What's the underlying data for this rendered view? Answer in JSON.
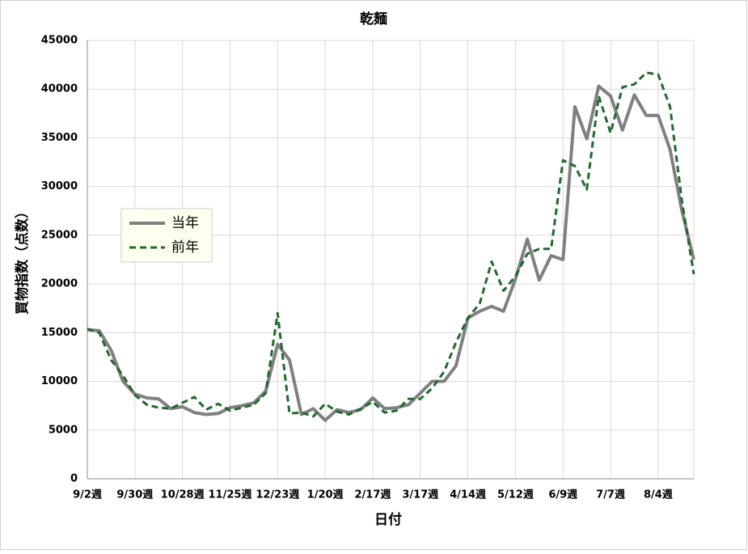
{
  "chart_data": {
    "type": "line",
    "title": "乾麺",
    "x_label": "日付",
    "y_label": "買物指数（点数）",
    "categories": [
      "9/2週",
      null,
      null,
      null,
      "9/30週",
      null,
      null,
      null,
      "10/28週",
      null,
      null,
      null,
      "11/25週",
      null,
      null,
      null,
      "12/23週",
      null,
      null,
      null,
      "1/20週",
      null,
      null,
      null,
      "2/17週",
      null,
      null,
      null,
      "3/17週",
      null,
      null,
      null,
      "4/14週",
      null,
      null,
      null,
      "5/12週",
      null,
      null,
      null,
      "6/9週",
      null,
      null,
      null,
      "7/7週",
      null,
      null,
      null,
      "8/4週",
      null,
      null,
      null
    ],
    "series": [
      {
        "name": "当年",
        "color": "#808080",
        "dash": false,
        "values": [
          15300,
          15200,
          13200,
          10000,
          8700,
          8300,
          8200,
          7200,
          7400,
          6800,
          6600,
          6700,
          7300,
          7500,
          7800,
          9000,
          13800,
          12200,
          6600,
          7200,
          6000,
          7100,
          6800,
          7100,
          8300,
          7200,
          7300,
          7600,
          8800,
          10000,
          10000,
          11600,
          16500,
          17200,
          17700,
          17200,
          20500,
          24600,
          20400,
          22900,
          22500,
          38200,
          34900,
          40300,
          39300,
          35800,
          39400,
          37300,
          37300,
          33800,
          27500,
          22500
        ]
      },
      {
        "name": "前年",
        "color": "#1e6b2a",
        "dash": true,
        "values": [
          15400,
          15000,
          12200,
          10600,
          8600,
          7600,
          7300,
          7200,
          7800,
          8400,
          7100,
          7700,
          7000,
          7300,
          7600,
          8800,
          17000,
          6700,
          6800,
          6400,
          7700,
          6900,
          6600,
          7200,
          7900,
          6800,
          7000,
          8200,
          8200,
          9300,
          11000,
          14000,
          16500,
          18000,
          22300,
          19300,
          20800,
          23100,
          23600,
          23600,
          32700,
          32100,
          29700,
          39300,
          35500,
          40200,
          40500,
          41700,
          41500,
          38200,
          28500,
          21000
        ]
      }
    ],
    "ylim": [
      0,
      45000
    ],
    "yticks": [
      0,
      5000,
      10000,
      15000,
      20000,
      25000,
      30000,
      35000,
      40000,
      45000
    ],
    "grid": true
  }
}
